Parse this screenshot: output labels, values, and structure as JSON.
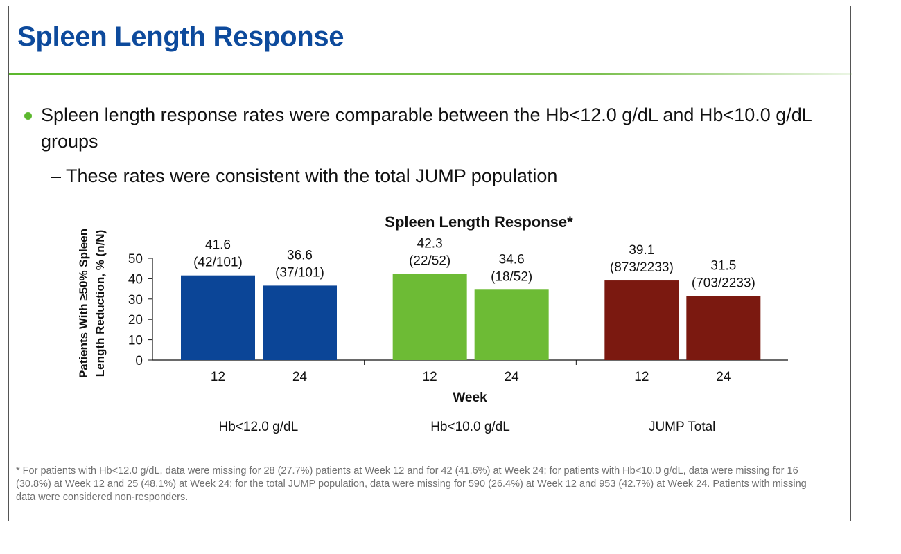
{
  "slide": {
    "title": "Spleen Length Response",
    "bullet": "Spleen length response rates were comparable between the Hb<12.0 g/dL and Hb<10.0 g/dL groups",
    "sub_bullet": "– These rates were consistent with the total JUMP population",
    "footnote": "* For patients with Hb<12.0 g/dL, data were missing for 28 (27.7%) patients at Week 12 and for 42 (41.6%) at Week 24; for patients with Hb<10.0 g/dL, data were missing for 16 (30.8%) at Week 12 and 25 (48.1%) at Week 24; for the total JUMP population, data were missing for 590 (26.4%) at Week 12 and 953 (42.7%) at Week 24. Patients with missing data were considered non-responders."
  },
  "colors": {
    "title": "#0d4a9c",
    "rule": "#5cb82e"
  },
  "chart_data": {
    "type": "bar",
    "title": "Spleen Length Response*",
    "xlabel": "Week",
    "ylabel_lines": [
      "Patients With ≥50% Spleen",
      "Length Reduction, % (n/N)"
    ],
    "ylim": [
      0,
      50
    ],
    "yticks": [
      0,
      10,
      20,
      30,
      40,
      50
    ],
    "grid": false,
    "legend": "none",
    "groups": [
      {
        "name": "Hb<12.0 g/dL",
        "color": "#0b4597",
        "bars": [
          {
            "week": "12",
            "value": 41.6,
            "n_over_N": "(42/101)"
          },
          {
            "week": "24",
            "value": 36.6,
            "n_over_N": "(37/101)"
          }
        ]
      },
      {
        "name": "Hb<10.0 g/dL",
        "color": "#6dbb35",
        "bars": [
          {
            "week": "12",
            "value": 42.3,
            "n_over_N": "(22/52)"
          },
          {
            "week": "24",
            "value": 34.6,
            "n_over_N": "(18/52)"
          }
        ]
      },
      {
        "name": "JUMP Total",
        "color": "#7b1910",
        "bars": [
          {
            "week": "12",
            "value": 39.1,
            "n_over_N": "(873/2233)"
          },
          {
            "week": "24",
            "value": 31.5,
            "n_over_N": "(703/2233)"
          }
        ]
      }
    ]
  }
}
